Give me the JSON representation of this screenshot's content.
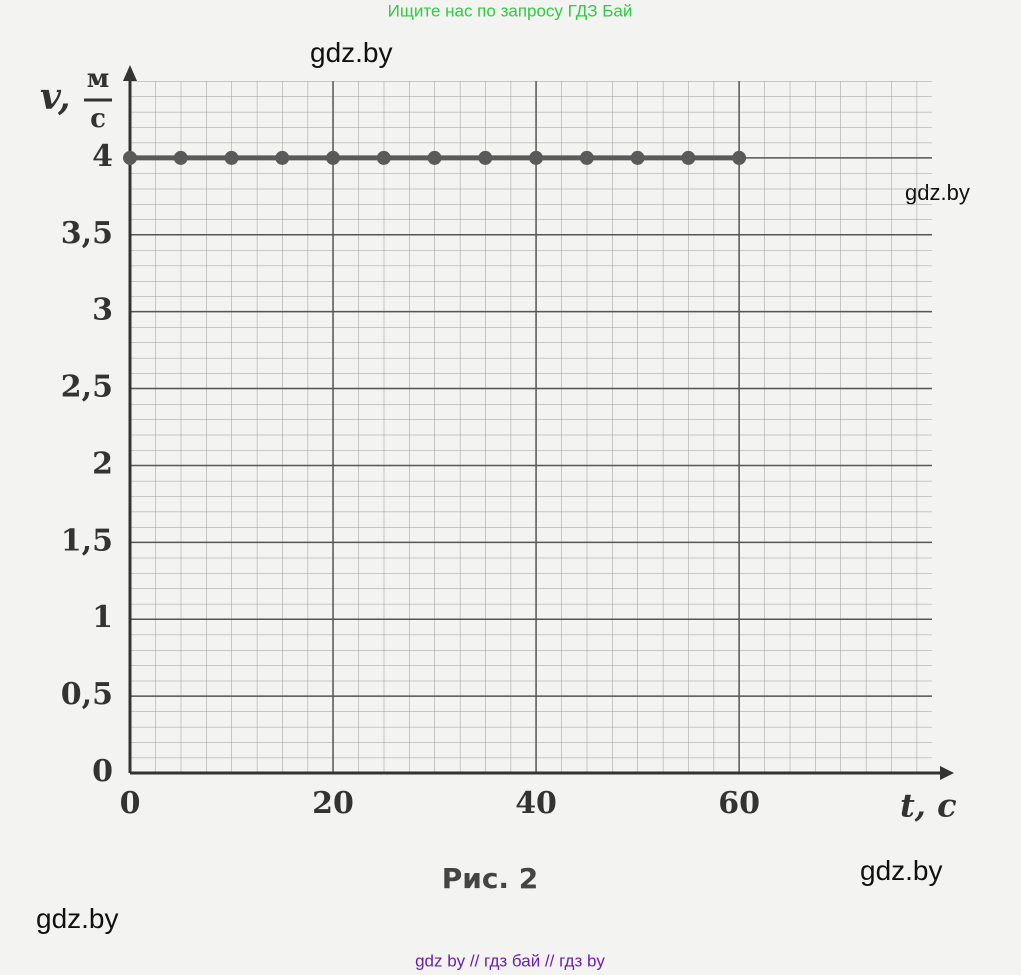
{
  "header": "Ищите нас по запросу ГДЗ Бай",
  "watermarks": [
    "gdz.by",
    "gdz.by",
    "gdz.by",
    "gdz.by"
  ],
  "footer": "gdz by  //  гдз бай  //  гдз by",
  "chart_data": {
    "type": "line",
    "y_label": "v,",
    "y_unit_top": "м",
    "y_unit_bottom": "с",
    "x_label": "t, с",
    "caption": "Рис. 2",
    "x": [
      0,
      5,
      10,
      15,
      20,
      25,
      30,
      35,
      40,
      45,
      50,
      55,
      60
    ],
    "series": [
      {
        "color": "#5a5a5a",
        "values": [
          4,
          4,
          4,
          4,
          4,
          4,
          4,
          4,
          4,
          4,
          4,
          4,
          4
        ]
      }
    ],
    "xlim": [
      0,
      79
    ],
    "ylim": [
      0,
      4.5
    ],
    "xticks": [
      0,
      20,
      40,
      60
    ],
    "yticks": [
      0,
      {
        "value": 0.5,
        "label": "0,5"
      },
      1,
      {
        "value": 1.5,
        "label": "1,5"
      },
      2,
      {
        "value": 2.5,
        "label": "2,5"
      },
      3,
      {
        "value": 3.5,
        "label": "3,5"
      },
      4
    ],
    "grid": true
  }
}
